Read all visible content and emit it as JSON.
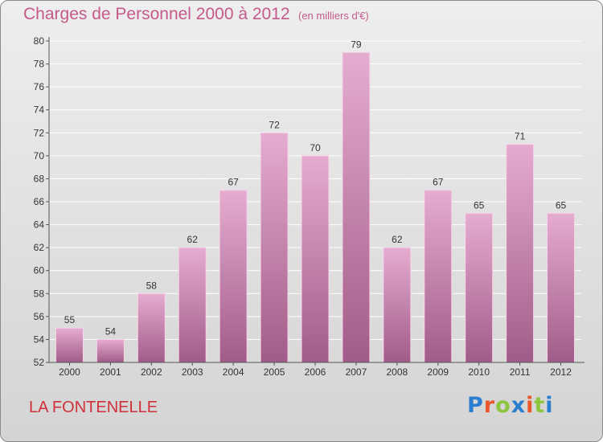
{
  "title": "Charges de Personnel 2000 à 2012",
  "subtitle": "(en milliers d'€)",
  "commune": "LA FONTENELLE",
  "logo": {
    "text": "Proxiti",
    "letter_colors": [
      "#2a7fd0",
      "#e8562a",
      "#8cc63f",
      "#2a7fd0",
      "#e8562a",
      "#8cc63f",
      "#2a7fd0"
    ]
  },
  "colors": {
    "bar_light": "#e6acd0",
    "bar_dark": "#a05c88",
    "title": "#c45a8a",
    "commune": "#d0303a",
    "axis": "#555555",
    "grid": "#ffffff"
  },
  "chart_data": {
    "type": "bar",
    "title": "Charges de Personnel 2000 à 2012",
    "subtitle": "(en milliers d'€)",
    "categories": [
      "2000",
      "2001",
      "2002",
      "2003",
      "2004",
      "2005",
      "2006",
      "2007",
      "2008",
      "2009",
      "2010",
      "2011",
      "2012"
    ],
    "values": [
      55,
      54,
      58,
      62,
      67,
      72,
      70,
      79,
      62,
      67,
      65,
      71,
      65
    ],
    "data_labels": [
      "55",
      "54",
      "58",
      "62",
      "67",
      "72",
      "70",
      "79",
      "62",
      "67",
      "65",
      "71",
      "65"
    ],
    "ylim": [
      52,
      80
    ],
    "yticks": [
      52,
      54,
      56,
      58,
      60,
      62,
      64,
      66,
      68,
      70,
      72,
      74,
      76,
      78,
      80
    ],
    "ytick_labels": [
      "52",
      "54",
      "56",
      "58",
      "60",
      "62",
      "64",
      "66",
      "68",
      "70",
      "72",
      "74",
      "76",
      "78",
      "80"
    ],
    "grid": true,
    "xlabel": "",
    "ylabel": ""
  }
}
